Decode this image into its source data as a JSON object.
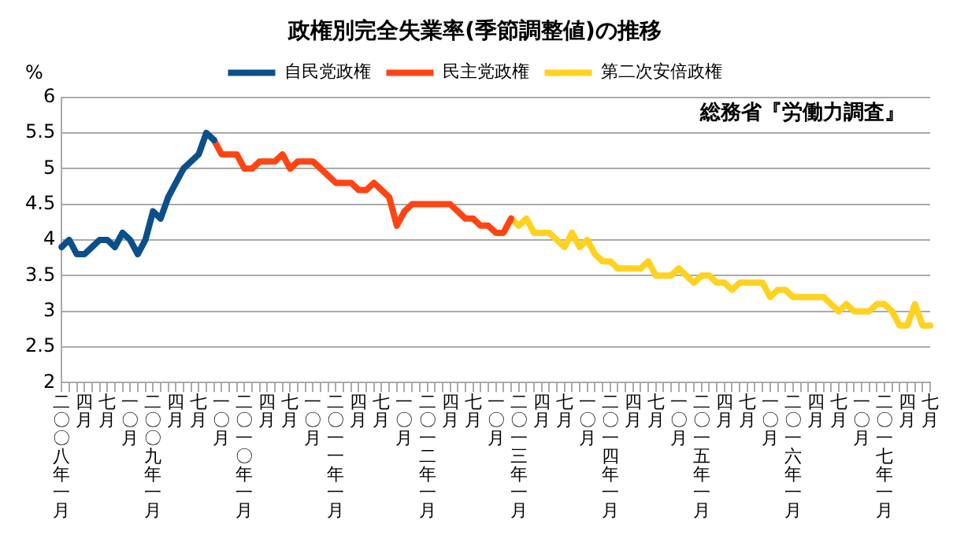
{
  "chart_data": {
    "type": "line",
    "title": "政権別完全失業率(季節調整値)の推移",
    "ylabel": "%",
    "annotations": [
      "総務省『労働力調査』"
    ],
    "categories": [
      "二〇〇八年一月",
      null,
      null,
      "四月",
      null,
      null,
      "七月",
      null,
      null,
      "一〇月",
      null,
      null,
      "二〇〇九年一月",
      null,
      null,
      "四月",
      null,
      null,
      "七月",
      null,
      null,
      "一〇月",
      null,
      null,
      "二〇一〇年一月",
      null,
      null,
      "四月",
      null,
      null,
      "七月",
      null,
      null,
      "一〇月",
      null,
      null,
      "二〇一一年一月",
      null,
      null,
      "四月",
      null,
      null,
      "七月",
      null,
      null,
      "一〇月",
      null,
      null,
      "二〇一二年一月",
      null,
      null,
      "四月",
      null,
      null,
      "七月",
      null,
      null,
      "一〇月",
      null,
      null,
      "二〇一三年一月",
      null,
      null,
      "四月",
      null,
      null,
      "七月",
      null,
      null,
      "一〇月",
      null,
      null,
      "二〇一四年一月",
      null,
      null,
      "四月",
      null,
      null,
      "七月",
      null,
      null,
      "一〇月",
      null,
      null,
      "二〇一五年一月",
      null,
      null,
      "四月",
      null,
      null,
      "七月",
      null,
      null,
      "一〇月",
      null,
      null,
      "二〇一六年一月",
      null,
      null,
      "四月",
      null,
      null,
      "七月",
      null,
      null,
      "一〇月",
      null,
      null,
      "二〇一七年一月",
      null,
      null,
      "四月",
      null,
      null,
      "七月"
    ],
    "series": [
      {
        "name": "自民党政権",
        "color": "#0b4f8a",
        "values": [
          3.9,
          4.0,
          3.8,
          3.8,
          3.9,
          4.0,
          4.0,
          3.9,
          4.1,
          4.0,
          3.8,
          4.0,
          4.4,
          4.3,
          4.6,
          4.8,
          5.0,
          5.1,
          5.2,
          5.5,
          5.4,
          null,
          null,
          null,
          null,
          null,
          null,
          null,
          null,
          null,
          null,
          null,
          null,
          null,
          null,
          null,
          null,
          null,
          null,
          null,
          null,
          null,
          null,
          null,
          null,
          null,
          null,
          null,
          null,
          null,
          null,
          null,
          null,
          null,
          null,
          null,
          null,
          null,
          null,
          null,
          null,
          null,
          null,
          null,
          null,
          null,
          null,
          null,
          null,
          null,
          null,
          null,
          null,
          null,
          null,
          null,
          null,
          null,
          null,
          null,
          null,
          null,
          null,
          null,
          null,
          null,
          null,
          null,
          null,
          null,
          null,
          null,
          null,
          null,
          null,
          null,
          null,
          null,
          null,
          null,
          null,
          null,
          null,
          null,
          null,
          null,
          null,
          null,
          null,
          null,
          null,
          null,
          null,
          null,
          null
        ]
      },
      {
        "name": "民主党政権",
        "color": "#ff4411",
        "values": [
          null,
          null,
          null,
          null,
          null,
          null,
          null,
          null,
          null,
          null,
          null,
          null,
          null,
          null,
          null,
          null,
          null,
          null,
          null,
          null,
          5.4,
          5.2,
          5.2,
          5.2,
          5.0,
          5.0,
          5.1,
          5.1,
          5.1,
          5.2,
          5.0,
          5.1,
          5.1,
          5.1,
          5.0,
          4.9,
          4.8,
          4.8,
          4.8,
          4.7,
          4.7,
          4.8,
          4.7,
          4.6,
          4.2,
          4.4,
          4.5,
          4.5,
          4.5,
          4.5,
          4.5,
          4.5,
          4.4,
          4.3,
          4.3,
          4.2,
          4.2,
          4.1,
          4.1,
          4.3,
          null,
          null,
          null,
          null,
          null,
          null,
          null,
          null,
          null,
          null,
          null,
          null,
          null,
          null,
          null,
          null,
          null,
          null,
          null,
          null,
          null,
          null,
          null,
          null,
          null,
          null,
          null,
          null,
          null,
          null,
          null,
          null,
          null,
          null,
          null,
          null,
          null,
          null,
          null,
          null,
          null,
          null,
          null,
          null,
          null,
          null,
          null,
          null,
          null,
          null,
          null,
          null,
          null,
          null,
          null
        ]
      },
      {
        "name": "第二次安倍政権",
        "color": "#ffd21f",
        "values": [
          null,
          null,
          null,
          null,
          null,
          null,
          null,
          null,
          null,
          null,
          null,
          null,
          null,
          null,
          null,
          null,
          null,
          null,
          null,
          null,
          null,
          null,
          null,
          null,
          null,
          null,
          null,
          null,
          null,
          null,
          null,
          null,
          null,
          null,
          null,
          null,
          null,
          null,
          null,
          null,
          null,
          null,
          null,
          null,
          null,
          null,
          null,
          null,
          null,
          null,
          null,
          null,
          null,
          null,
          null,
          null,
          null,
          null,
          null,
          4.3,
          4.2,
          4.3,
          4.1,
          4.1,
          4.1,
          4.0,
          3.9,
          4.1,
          3.9,
          4.0,
          3.8,
          3.7,
          3.7,
          3.6,
          3.6,
          3.6,
          3.6,
          3.7,
          3.5,
          3.5,
          3.5,
          3.6,
          3.5,
          3.4,
          3.5,
          3.5,
          3.4,
          3.4,
          3.3,
          3.4,
          3.4,
          3.4,
          3.4,
          3.2,
          3.3,
          3.3,
          3.2,
          3.2,
          3.2,
          3.2,
          3.2,
          3.1,
          3.0,
          3.1,
          3.0,
          3.0,
          3.0,
          3.1,
          3.1,
          3.0,
          2.8,
          2.8,
          3.1,
          2.8,
          2.8
        ]
      }
    ],
    "ylim": [
      2,
      6
    ],
    "yticks": [
      2,
      2.5,
      3,
      3.5,
      4,
      4.5,
      5,
      5.5,
      6
    ],
    "grid": "y",
    "legend": "top",
    "marker": "none",
    "line_style": "solid"
  }
}
